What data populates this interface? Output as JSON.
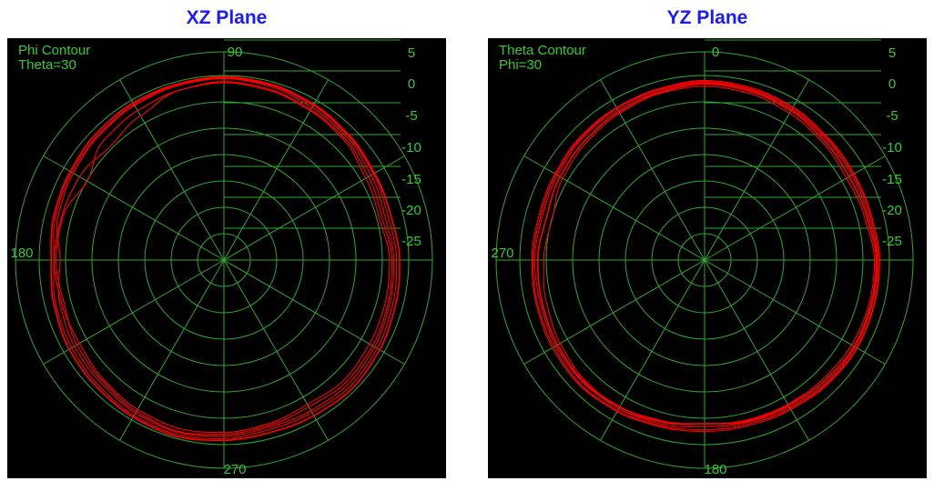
{
  "chart_data": [
    {
      "type": "polar",
      "title": "XZ Plane",
      "contour_label": "Phi Contour",
      "contour_value": "Theta=30",
      "angle_labels": {
        "top": "90",
        "left": "180",
        "bottom": "270"
      },
      "radial_ticks": [
        "5",
        "0",
        "-5",
        "-10",
        "-15",
        "-20",
        "-25"
      ],
      "radial_range_db": [
        -30,
        5
      ],
      "grid": true,
      "series_color": "#ff0000",
      "series": [
        {
          "theta_deg": [
            0,
            15,
            30,
            45,
            60,
            75,
            90,
            105,
            120,
            135,
            150,
            165,
            180,
            195,
            210,
            225,
            240,
            255,
            270,
            285,
            300,
            315,
            330,
            345,
            360
          ],
          "gain_db": [
            -1.5,
            -2.0,
            -1.5,
            -0.8,
            -0.4,
            0.2,
            0.5,
            0.3,
            0.0,
            -0.4,
            -0.8,
            -1.2,
            -2.5,
            -1.5,
            -1.0,
            -0.8,
            -0.3,
            0.0,
            -0.4,
            -0.9,
            -0.8,
            -0.5,
            -0.8,
            -1.2,
            -1.5
          ]
        },
        {
          "theta_deg": [
            0,
            15,
            30,
            45,
            60,
            75,
            90,
            105,
            120,
            135,
            150,
            165,
            180,
            195,
            210,
            225,
            240,
            255,
            270,
            285,
            300,
            315,
            330,
            345,
            360
          ],
          "gain_db": [
            -1.0,
            -1.5,
            -1.0,
            -0.5,
            0.0,
            0.4,
            0.6,
            0.5,
            0.2,
            -0.2,
            -0.5,
            -0.8,
            -1.5,
            -0.8,
            -0.5,
            -0.2,
            0.2,
            0.4,
            0.0,
            -0.5,
            -0.4,
            0.0,
            -0.3,
            -0.7,
            -1.0
          ]
        },
        {
          "theta_deg": [
            0,
            15,
            30,
            45,
            60,
            75,
            90,
            105,
            120,
            135,
            150,
            165,
            180,
            195,
            210,
            225,
            240,
            255,
            270,
            285,
            300,
            315,
            330,
            345,
            360
          ],
          "gain_db": [
            -2.2,
            -3.0,
            -2.5,
            -1.5,
            -1.0,
            -0.5,
            -0.2,
            -0.5,
            -2.0,
            -3.0,
            -2.0,
            -1.8,
            -1.5,
            -1.8,
            -2.0,
            -1.5,
            -1.0,
            -0.7,
            -1.0,
            -1.5,
            -2.0,
            -1.5,
            -1.8,
            -2.0,
            -2.2
          ]
        },
        {
          "theta_deg": [
            0,
            15,
            30,
            45,
            60,
            75,
            90,
            105,
            120,
            135,
            150,
            165,
            180,
            195,
            210,
            225,
            240,
            255,
            270,
            285,
            300,
            315,
            330,
            345,
            360
          ],
          "gain_db": [
            -0.5,
            -1.0,
            -0.8,
            -0.3,
            0.2,
            0.6,
            0.8,
            0.6,
            0.5,
            0.2,
            -0.2,
            -0.5,
            -1.0,
            -0.5,
            0.0,
            0.2,
            0.5,
            0.7,
            0.3,
            0.0,
            0.2,
            0.5,
            0.2,
            -0.2,
            -0.5
          ]
        },
        {
          "theta_deg": [
            0,
            15,
            30,
            45,
            60,
            75,
            90,
            105,
            120,
            135,
            150,
            165,
            180,
            195,
            210,
            225,
            240,
            255,
            270,
            285,
            300,
            315,
            330,
            345,
            360
          ],
          "gain_db": [
            -1.8,
            -2.5,
            -2.0,
            -1.2,
            -0.8,
            -0.3,
            0.0,
            -0.5,
            -1.0,
            -1.5,
            -3.5,
            -2.0,
            -1.8,
            -2.2,
            -1.5,
            -1.2,
            -0.6,
            -0.2,
            -0.7,
            -1.2,
            -1.5,
            -1.0,
            -1.2,
            -1.5,
            -1.8
          ]
        }
      ]
    },
    {
      "type": "polar",
      "title": "YZ Plane",
      "contour_label": "Theta Contour",
      "contour_value": "Phi=30",
      "angle_labels": {
        "top": "0",
        "left": "270",
        "bottom": "180"
      },
      "radial_ticks": [
        "5",
        "0",
        "-5",
        "-10",
        "-15",
        "-20",
        "-25"
      ],
      "radial_range_db": [
        -30,
        5
      ],
      "grid": true,
      "series_color": "#ff0000",
      "series": [
        {
          "theta_deg": [
            0,
            15,
            30,
            45,
            60,
            75,
            90,
            105,
            120,
            135,
            150,
            165,
            180,
            195,
            210,
            225,
            240,
            255,
            270,
            285,
            300,
            315,
            330,
            345,
            360
          ],
          "gain_db": [
            -1.0,
            -1.5,
            -1.5,
            -1.2,
            -0.8,
            -0.4,
            -0.2,
            -0.5,
            -0.8,
            -1.0,
            -1.5,
            -1.8,
            -1.5,
            -1.5,
            -1.2,
            -1.0,
            -1.2,
            -1.5,
            -2.0,
            -1.8,
            -1.5,
            -1.0,
            -0.8,
            -0.9,
            -1.0
          ]
        },
        {
          "theta_deg": [
            0,
            15,
            30,
            45,
            60,
            75,
            90,
            105,
            120,
            135,
            150,
            165,
            180,
            195,
            210,
            225,
            240,
            255,
            270,
            285,
            300,
            315,
            330,
            345,
            360
          ],
          "gain_db": [
            -0.8,
            -1.2,
            -1.2,
            -1.0,
            -0.5,
            -0.2,
            0.0,
            -0.3,
            -0.5,
            -0.8,
            -1.2,
            -1.5,
            -1.2,
            -1.0,
            -0.8,
            -0.5,
            -0.8,
            -1.2,
            -1.5,
            -1.5,
            -1.2,
            -0.8,
            -0.5,
            -0.6,
            -0.8
          ]
        },
        {
          "theta_deg": [
            0,
            15,
            30,
            45,
            60,
            75,
            90,
            105,
            120,
            135,
            150,
            165,
            180,
            195,
            210,
            225,
            240,
            255,
            270,
            285,
            300,
            315,
            330,
            345,
            360
          ],
          "gain_db": [
            -1.5,
            -2.2,
            -2.5,
            -2.0,
            -1.5,
            -1.0,
            -0.8,
            -1.0,
            -1.5,
            -2.0,
            -2.5,
            -3.5,
            -3.0,
            -2.5,
            -2.0,
            -1.5,
            -1.2,
            -1.8,
            -2.5,
            -2.2,
            -2.0,
            -1.8,
            -1.5,
            -1.4,
            -1.5
          ]
        },
        {
          "theta_deg": [
            0,
            15,
            30,
            45,
            60,
            75,
            90,
            105,
            120,
            135,
            150,
            165,
            180,
            195,
            210,
            225,
            240,
            255,
            270,
            285,
            300,
            315,
            330,
            345,
            360
          ],
          "gain_db": [
            -1.2,
            -1.8,
            -2.0,
            -1.6,
            -1.0,
            -0.6,
            -0.4,
            -0.8,
            -1.2,
            -1.6,
            -2.0,
            -2.5,
            -2.0,
            -1.8,
            -1.5,
            -1.2,
            -1.5,
            -2.0,
            -2.5,
            -2.0,
            -1.8,
            -1.4,
            -1.0,
            -1.1,
            -1.2
          ]
        },
        {
          "theta_deg": [
            0,
            15,
            30,
            45,
            60,
            75,
            90,
            105,
            120,
            135,
            150,
            165,
            180,
            195,
            210,
            225,
            240,
            255,
            270,
            285,
            300,
            315,
            330,
            345,
            360
          ],
          "gain_db": [
            -0.6,
            -1.0,
            -1.0,
            -0.8,
            -0.3,
            0.0,
            0.2,
            -0.2,
            -0.4,
            -0.6,
            -1.0,
            -1.2,
            -1.0,
            -0.8,
            -0.5,
            -0.3,
            -0.6,
            -1.0,
            -1.2,
            -1.2,
            -1.0,
            -0.6,
            -0.4,
            -0.5,
            -0.6
          ]
        }
      ]
    }
  ]
}
